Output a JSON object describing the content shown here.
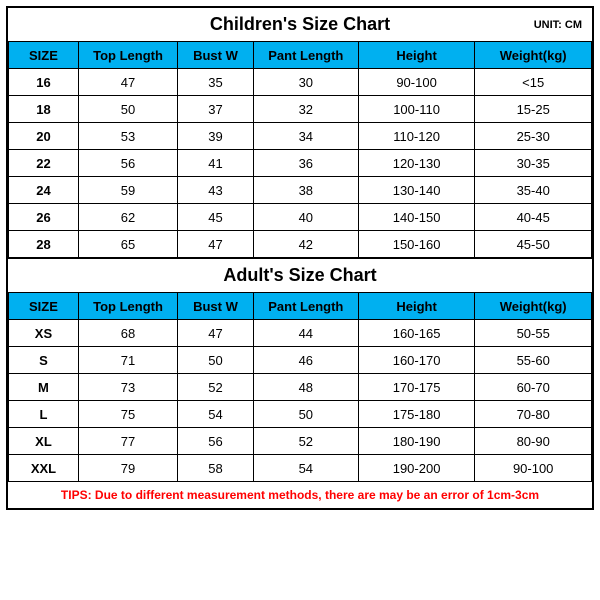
{
  "border_color": "#000000",
  "header_bg": "#00b0f0",
  "tips_color": "#ff0000",
  "children": {
    "title": "Children's Size Chart",
    "unit": "UNIT: CM",
    "columns": [
      "SIZE",
      "Top Length",
      "Bust W",
      "Pant Length",
      "Height",
      "Weight(kg)"
    ],
    "rows": [
      [
        "16",
        "47",
        "35",
        "30",
        "90-100",
        "<15"
      ],
      [
        "18",
        "50",
        "37",
        "32",
        "100-110",
        "15-25"
      ],
      [
        "20",
        "53",
        "39",
        "34",
        "110-120",
        "25-30"
      ],
      [
        "22",
        "56",
        "41",
        "36",
        "120-130",
        "30-35"
      ],
      [
        "24",
        "59",
        "43",
        "38",
        "130-140",
        "35-40"
      ],
      [
        "26",
        "62",
        "45",
        "40",
        "140-150",
        "40-45"
      ],
      [
        "28",
        "65",
        "47",
        "42",
        "150-160",
        "45-50"
      ]
    ]
  },
  "adult": {
    "title": "Adult's Size Chart",
    "columns": [
      "SIZE",
      "Top Length",
      "Bust W",
      "Pant Length",
      "Height",
      "Weight(kg)"
    ],
    "rows": [
      [
        "XS",
        "68",
        "47",
        "44",
        "160-165",
        "50-55"
      ],
      [
        "S",
        "71",
        "50",
        "46",
        "160-170",
        "55-60"
      ],
      [
        "M",
        "73",
        "52",
        "48",
        "170-175",
        "60-70"
      ],
      [
        "L",
        "75",
        "54",
        "50",
        "175-180",
        "70-80"
      ],
      [
        "XL",
        "77",
        "56",
        "52",
        "180-190",
        "80-90"
      ],
      [
        "XXL",
        "79",
        "58",
        "54",
        "190-200",
        "90-100"
      ]
    ]
  },
  "tips": "TIPS: Due to different measurement methods, there are may be an error of 1cm-3cm"
}
